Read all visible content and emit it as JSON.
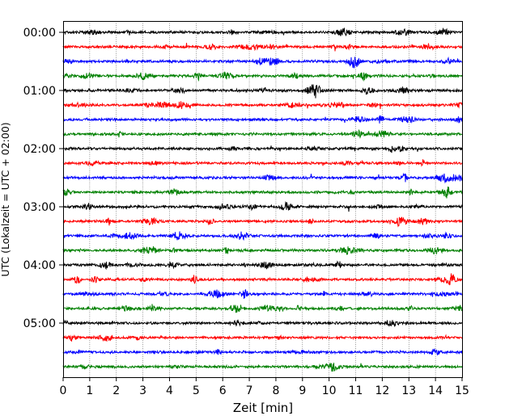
{
  "chart_data": {
    "type": "line",
    "title": "",
    "xlabel": "Zeit  [min]",
    "ylabel": "UTC (Lokalzeit = UTC + 02:00)",
    "xlim": [
      0,
      15
    ],
    "x_ticks": [
      "0",
      "1",
      "2",
      "3",
      "4",
      "5",
      "6",
      "7",
      "8",
      "9",
      "10",
      "11",
      "12",
      "13",
      "14",
      "15"
    ],
    "y_ticks": [
      "00:00",
      "01:00",
      "02:00",
      "03:00",
      "04:00",
      "05:00"
    ],
    "grid": "vertical dotted at each minute",
    "trace_interval_min": 15,
    "trace_count": 24,
    "trace_colors": [
      "#000000",
      "#ff0000",
      "#0000ff",
      "#008000"
    ],
    "annotation": "",
    "traces_start_utc": "00:00"
  }
}
